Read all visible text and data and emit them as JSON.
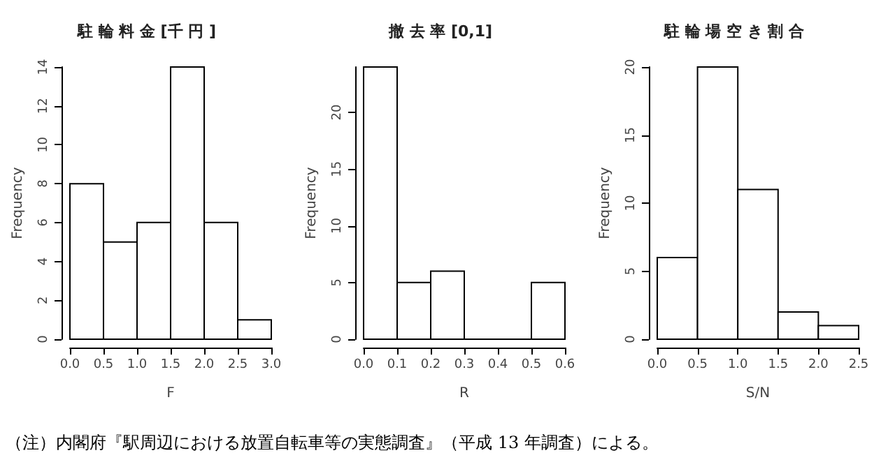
{
  "chart_data": [
    {
      "type": "histogram",
      "title": "駐 輪 料 金 [千 円 ]",
      "xlabel": "F",
      "ylabel": "Frequency",
      "bins": [
        0,
        0.5,
        1,
        1.5,
        2,
        2.5,
        3
      ],
      "values": [
        8,
        5,
        6,
        14,
        6,
        1
      ],
      "xlim": [
        0,
        3
      ],
      "ylim": [
        0,
        14
      ],
      "xticks": [
        {
          "value": 0,
          "label": "0.0"
        },
        0.5,
        {
          "value": 1,
          "label": "1.0"
        },
        1.5,
        {
          "value": 2,
          "label": "2.0"
        },
        2.5,
        {
          "value": 3,
          "label": "3.0"
        }
      ],
      "yticks": [
        0,
        2,
        4,
        6,
        8,
        10,
        12,
        14
      ],
      "grid": false
    },
    {
      "type": "histogram",
      "title": "撤 去 率 [0,1]",
      "xlabel": "R",
      "ylabel": "Frequency",
      "bins": [
        0,
        0.1,
        0.2,
        0.3,
        0.4,
        0.5,
        0.6
      ],
      "values": [
        24,
        5,
        6,
        0,
        0,
        5
      ],
      "xlim": [
        0,
        0.6
      ],
      "ylim": [
        0,
        24
      ],
      "xticks": [
        {
          "value": 0,
          "label": "0.0"
        },
        0.1,
        0.2,
        0.3,
        0.4,
        0.5,
        0.6
      ],
      "yticks": [
        0,
        5,
        10,
        15,
        20
      ],
      "grid": false
    },
    {
      "type": "histogram",
      "title": "駐 輪 場 空 き 割 合",
      "xlabel": "S/N",
      "ylabel": "Frequency",
      "bins": [
        0,
        0.5,
        1,
        1.5,
        2,
        2.5
      ],
      "values": [
        6,
        20,
        11,
        2,
        1
      ],
      "xlim": [
        0,
        2.5
      ],
      "ylim": [
        0,
        20
      ],
      "xticks": [
        {
          "value": 0,
          "label": "0.0"
        },
        0.5,
        {
          "value": 1,
          "label": "1.0"
        },
        1.5,
        {
          "value": 2,
          "label": "2.0"
        },
        2.5
      ],
      "yticks": [
        0,
        5,
        10,
        15,
        20
      ],
      "grid": false,
      "annotations": [
        "（注）内閣府『駅周辺における放置自転車等の実態調査』（平成 13 年調査）による。"
      ]
    }
  ]
}
